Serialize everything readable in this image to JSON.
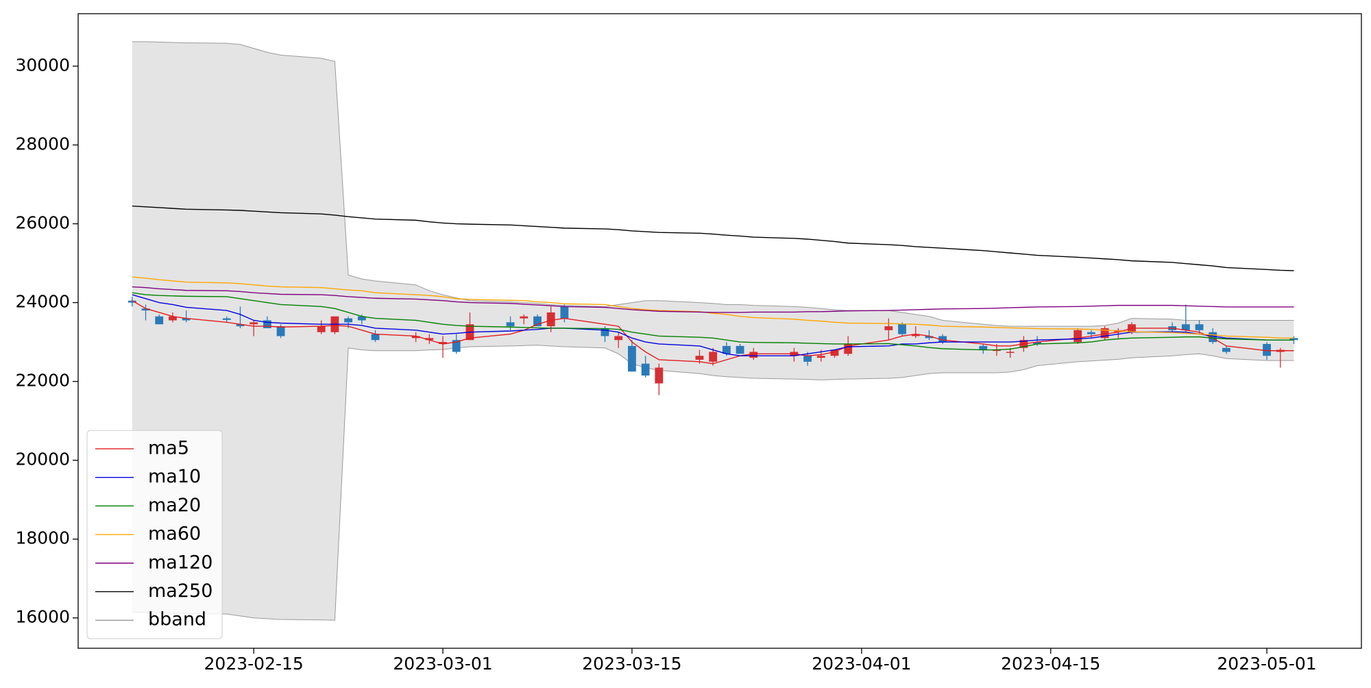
{
  "chart_data": {
    "type": "candlestick",
    "x": [
      "2023-02-06",
      "2023-02-07",
      "2023-02-08",
      "2023-02-09",
      "2023-02-10",
      "2023-02-13",
      "2023-02-14",
      "2023-02-15",
      "2023-02-16",
      "2023-02-17",
      "2023-02-20",
      "2023-02-21",
      "2023-02-22",
      "2023-02-23",
      "2023-02-24",
      "2023-02-27",
      "2023-02-28",
      "2023-03-01",
      "2023-03-02",
      "2023-03-03",
      "2023-03-06",
      "2023-03-07",
      "2023-03-08",
      "2023-03-09",
      "2023-03-10",
      "2023-03-13",
      "2023-03-14",
      "2023-03-15",
      "2023-03-16",
      "2023-03-17",
      "2023-03-20",
      "2023-03-21",
      "2023-03-22",
      "2023-03-23",
      "2023-03-24",
      "2023-03-27",
      "2023-03-28",
      "2023-03-29",
      "2023-03-30",
      "2023-03-31",
      "2023-04-03",
      "2023-04-04",
      "2023-04-05",
      "2023-04-06",
      "2023-04-07",
      "2023-04-10",
      "2023-04-11",
      "2023-04-12",
      "2023-04-13",
      "2023-04-14",
      "2023-04-17",
      "2023-04-18",
      "2023-04-19",
      "2023-04-20",
      "2023-04-21",
      "2023-04-24",
      "2023-04-25",
      "2023-04-26",
      "2023-04-27",
      "2023-04-28",
      "2023-05-01",
      "2023-05-02",
      "2023-05-03"
    ],
    "open": [
      24050,
      23850,
      23650,
      23550,
      23600,
      23600,
      23450,
      23450,
      23550,
      23400,
      23250,
      23250,
      23600,
      23650,
      23200,
      23100,
      23050,
      22950,
      23050,
      23050,
      23500,
      23600,
      23650,
      23400,
      23900,
      23350,
      23050,
      22900,
      22450,
      21950,
      22550,
      22500,
      22900,
      22900,
      22600,
      22650,
      22650,
      22600,
      22650,
      22700,
      23300,
      23450,
      23150,
      23150,
      23150,
      22900,
      22800,
      22750,
      22850,
      23000,
      23000,
      23250,
      23100,
      23250,
      23250,
      23400,
      23450,
      23450,
      23250,
      22850,
      22950,
      22750,
      23100
    ],
    "high": [
      24150,
      23950,
      23700,
      23750,
      23800,
      23650,
      23900,
      23550,
      23650,
      23450,
      23550,
      23650,
      23650,
      23700,
      23300,
      23250,
      23200,
      23150,
      23200,
      23750,
      23650,
      23700,
      23700,
      23900,
      23950,
      23400,
      23250,
      23050,
      22650,
      22450,
      22800,
      22850,
      23000,
      22950,
      22850,
      22850,
      22750,
      22800,
      22800,
      23150,
      23600,
      23500,
      23400,
      23300,
      23200,
      22950,
      22950,
      22850,
      23150,
      23150,
      23350,
      23300,
      23400,
      23350,
      23500,
      23500,
      23950,
      23550,
      23350,
      22900,
      23000,
      22850,
      23150
    ],
    "low": [
      23900,
      23550,
      23450,
      23500,
      23500,
      23500,
      23350,
      23150,
      23350,
      23100,
      23200,
      23200,
      23350,
      23450,
      23000,
      23000,
      22950,
      22600,
      22700,
      23050,
      23300,
      23450,
      23400,
      23250,
      23500,
      23000,
      22850,
      22250,
      22100,
      21650,
      22450,
      22400,
      22650,
      22700,
      22550,
      22500,
      22400,
      22500,
      22600,
      22650,
      23050,
      23150,
      23100,
      23050,
      22950,
      22700,
      22650,
      22600,
      22750,
      22900,
      22950,
      23100,
      23050,
      23100,
      23200,
      23250,
      23250,
      23200,
      22950,
      22700,
      22550,
      22350,
      22950
    ],
    "close": [
      24000,
      23800,
      23450,
      23650,
      23550,
      23560,
      23400,
      23500,
      23350,
      23150,
      23400,
      23650,
      23500,
      23550,
      23050,
      23150,
      23100,
      23000,
      22750,
      23450,
      23400,
      23650,
      23400,
      23750,
      23600,
      23150,
      23150,
      22250,
      22150,
      22350,
      22650,
      22750,
      22700,
      22700,
      22750,
      22750,
      22500,
      22650,
      22800,
      22950,
      23400,
      23200,
      23200,
      23100,
      23000,
      22800,
      22800,
      22750,
      23050,
      22950,
      23300,
      23200,
      23350,
      23300,
      23450,
      23300,
      23300,
      23300,
      23000,
      22750,
      22650,
      22800,
      23050
    ],
    "up_color": "#d62f34",
    "down_color": "#2a7ab9",
    "lines": [
      {
        "name": "ma5",
        "color": "#e41a1c",
        "values": [
          24050,
          23850,
          23750,
          23650,
          23600,
          23500,
          23450,
          23400,
          23400,
          23380,
          23400,
          23420,
          23400,
          23300,
          23200,
          23150,
          23050,
          22950,
          23000,
          23100,
          23200,
          23300,
          23450,
          23550,
          23600,
          23450,
          23400,
          23000,
          22750,
          22550,
          22500,
          22450,
          22550,
          22650,
          22700,
          22700,
          22650,
          22680,
          22750,
          22900,
          23050,
          23150,
          23200,
          23150,
          23050,
          22950,
          22900,
          22900,
          22950,
          23000,
          23100,
          23150,
          23200,
          23250,
          23350,
          23350,
          23300,
          23250,
          23100,
          22900,
          22780,
          22780,
          22780
        ]
      },
      {
        "name": "ma10",
        "color": "#0000e0",
        "values": [
          24200,
          24100,
          24000,
          23950,
          23880,
          23800,
          23700,
          23550,
          23500,
          23480,
          23450,
          23450,
          23450,
          23420,
          23350,
          23300,
          23250,
          23200,
          23220,
          23250,
          23280,
          23300,
          23320,
          23350,
          23350,
          23300,
          23250,
          23100,
          23000,
          22950,
          22900,
          22800,
          22700,
          22650,
          22650,
          22650,
          22700,
          22750,
          22800,
          22880,
          22900,
          22950,
          22950,
          22980,
          23000,
          23000,
          23000,
          23000,
          23020,
          23050,
          23080,
          23100,
          23150,
          23200,
          23250,
          23260,
          23250,
          23200,
          23150,
          23100,
          23050,
          23050,
          23050
        ]
      },
      {
        "name": "ma20",
        "color": "#008000",
        "values": [
          24250,
          24200,
          24180,
          24170,
          24160,
          24150,
          24100,
          24050,
          24000,
          23950,
          23900,
          23850,
          23750,
          23650,
          23600,
          23550,
          23500,
          23450,
          23420,
          23400,
          23380,
          23370,
          23360,
          23350,
          23350,
          23340,
          23320,
          23250,
          23200,
          23150,
          23120,
          23100,
          23050,
          23000,
          22990,
          22980,
          22970,
          22960,
          22950,
          22950,
          22960,
          22930,
          22900,
          22860,
          22830,
          22800,
          22800,
          22820,
          22880,
          22950,
          22980,
          23000,
          23050,
          23080,
          23100,
          23120,
          23130,
          23130,
          23100,
          23080,
          23050,
          23050,
          23050
        ]
      },
      {
        "name": "ma60",
        "color": "#ffa500",
        "values": [
          24650,
          24620,
          24580,
          24550,
          24520,
          24500,
          24480,
          24450,
          24420,
          24400,
          24380,
          24350,
          24320,
          24300,
          24250,
          24200,
          24180,
          24150,
          24100,
          24080,
          24060,
          24050,
          24020,
          24000,
          23970,
          23950,
          23900,
          23850,
          23820,
          23800,
          23770,
          23730,
          23700,
          23650,
          23620,
          23580,
          23550,
          23530,
          23500,
          23480,
          23470,
          23460,
          23450,
          23430,
          23400,
          23380,
          23370,
          23360,
          23350,
          23340,
          23330,
          23320,
          23300,
          23280,
          23260,
          23240,
          23220,
          23200,
          23180,
          23150,
          23120,
          23100,
          23100
        ]
      },
      {
        "name": "ma120",
        "color": "#800080",
        "values": [
          24400,
          24380,
          24350,
          24330,
          24310,
          24300,
          24280,
          24250,
          24230,
          24210,
          24200,
          24180,
          24150,
          24130,
          24110,
          24090,
          24070,
          24050,
          24020,
          24000,
          23980,
          23960,
          23940,
          23920,
          23900,
          23880,
          23850,
          23820,
          23800,
          23780,
          23760,
          23750,
          23750,
          23750,
          23760,
          23760,
          23770,
          23770,
          23780,
          23790,
          23800,
          23810,
          23820,
          23830,
          23840,
          23850,
          23860,
          23870,
          23880,
          23890,
          23900,
          23910,
          23920,
          23930,
          23930,
          23930,
          23920,
          23910,
          23900,
          23890,
          23890,
          23890,
          23890
        ]
      },
      {
        "name": "ma250",
        "color": "#000000",
        "values": [
          26450,
          26430,
          26410,
          26390,
          26370,
          26350,
          26340,
          26320,
          26300,
          26280,
          26250,
          26220,
          26180,
          26150,
          26120,
          26090,
          26050,
          26020,
          26000,
          25990,
          25970,
          25950,
          25930,
          25910,
          25890,
          25870,
          25850,
          25820,
          25800,
          25780,
          25760,
          25740,
          25710,
          25690,
          25660,
          25630,
          25610,
          25580,
          25550,
          25510,
          25470,
          25450,
          25420,
          25400,
          25380,
          25320,
          25290,
          25260,
          25230,
          25200,
          25150,
          25130,
          25110,
          25090,
          25060,
          25020,
          24990,
          24960,
          24930,
          24890,
          24840,
          24820,
          24810
        ]
      }
    ],
    "bband": {
      "name": "bband",
      "color": "#999999",
      "fill": "#e4e4e4",
      "upper": [
        30620,
        30620,
        30610,
        30600,
        30590,
        30580,
        30550,
        30450,
        30350,
        30280,
        30200,
        30120,
        24700,
        24600,
        24550,
        24450,
        24300,
        24200,
        24120,
        24050,
        24020,
        24000,
        23980,
        23950,
        23930,
        23900,
        23950,
        24000,
        24050,
        24050,
        24000,
        23980,
        23950,
        23950,
        23930,
        23900,
        23880,
        23850,
        23820,
        23800,
        23800,
        23750,
        23700,
        23650,
        23550,
        23450,
        23420,
        23400,
        23400,
        23400,
        23400,
        23400,
        23420,
        23480,
        23600,
        23580,
        23550,
        23550,
        23550,
        23550,
        23550,
        23550,
        23550
      ],
      "lower": [
        16150,
        16140,
        16130,
        16120,
        16110,
        16100,
        16050,
        16000,
        15980,
        15960,
        15950,
        15940,
        22850,
        22800,
        22780,
        22780,
        22800,
        22810,
        22850,
        22880,
        22900,
        22910,
        22920,
        22900,
        22880,
        22850,
        22700,
        22450,
        22350,
        22280,
        22200,
        22150,
        22120,
        22100,
        22080,
        22060,
        22050,
        22040,
        22050,
        22060,
        22080,
        22100,
        22150,
        22200,
        22220,
        22220,
        22220,
        22240,
        22300,
        22400,
        22500,
        22520,
        22540,
        22560,
        22600,
        22650,
        22680,
        22700,
        22650,
        22580,
        22530,
        22530,
        22530
      ]
    },
    "xlim": [
      "2023-02-02",
      "2023-05-08"
    ],
    "xticks": [
      "2023-02-15",
      "2023-03-01",
      "2023-03-15",
      "2023-04-01",
      "2023-04-15",
      "2023-05-01"
    ],
    "ylim": [
      15230,
      31330
    ],
    "yticks": [
      16000,
      18000,
      20000,
      22000,
      24000,
      26000,
      28000,
      30000
    ],
    "legend": "lower left"
  }
}
